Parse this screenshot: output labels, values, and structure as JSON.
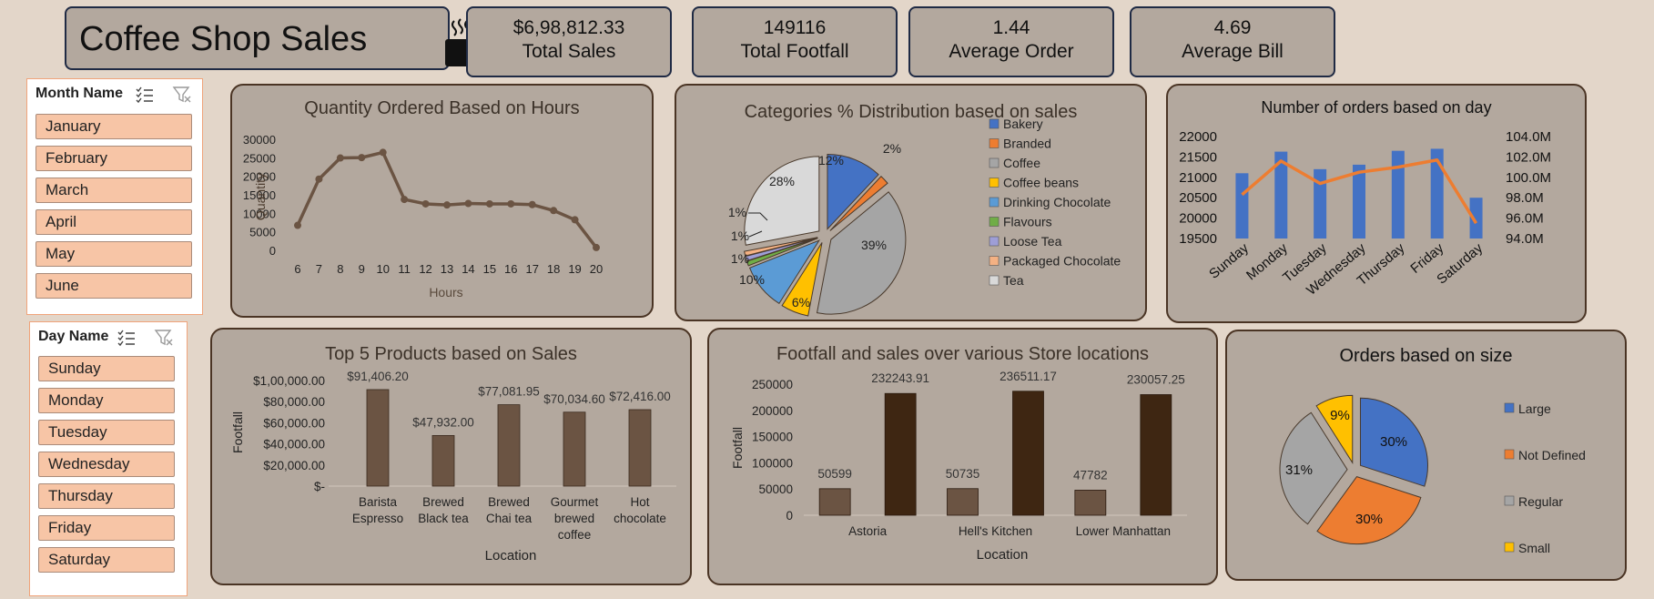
{
  "header": {
    "title": "Coffee Shop Sales",
    "icon": "coffee-cup-icon"
  },
  "kpis": [
    {
      "value": "$6,98,812.33",
      "label": "Total Sales"
    },
    {
      "value": "149116",
      "label": "Total Footfall"
    },
    {
      "value": "1.44",
      "label": "Average Order"
    },
    {
      "value": "4.69",
      "label": "Average Bill"
    }
  ],
  "slicers": {
    "month": {
      "title": "Month Name",
      "items": [
        "January",
        "February",
        "March",
        "April",
        "May",
        "June"
      ]
    },
    "day": {
      "title": "Day Name",
      "items": [
        "Sunday",
        "Monday",
        "Tuesday",
        "Wednesday",
        "Thursday",
        "Friday",
        "Saturday"
      ]
    }
  },
  "colors": {
    "brown_line": "#6b5443",
    "brown_bar": "#6b5443",
    "dark_bar": "#3e2612",
    "blue": "#4472c4",
    "orange": "#ed7d31",
    "gray": "#a5a5a5",
    "yellow": "#ffc000"
  },
  "chart_data": [
    {
      "id": "hours",
      "type": "line",
      "title": "Quantity Ordered Based on Hours",
      "xlabel": "Hours",
      "ylabel": "Quantity",
      "x": [
        "6",
        "7",
        "8",
        "9",
        "10",
        "11",
        "12",
        "13",
        "14",
        "15",
        "16",
        "17",
        "18",
        "19",
        "20"
      ],
      "values": [
        7000,
        19500,
        25200,
        25300,
        26700,
        14000,
        12800,
        12500,
        12900,
        12800,
        12800,
        12600,
        11000,
        8500,
        1000
      ],
      "yticks": [
        "30000",
        "25000",
        "20000",
        "15000",
        "10000",
        "5000",
        "0"
      ],
      "ylim": [
        0,
        30000
      ]
    },
    {
      "id": "categories",
      "type": "pie",
      "title": "Categories % Distribution based on sales",
      "legend": [
        "Bakery",
        "Branded",
        "Coffee",
        "Coffee beans",
        "Drinking Chocolate",
        "Flavours",
        "Loose Tea",
        "Packaged Chocolate",
        "Tea"
      ],
      "values": [
        12,
        2,
        39,
        6,
        10,
        1,
        1,
        1,
        28
      ],
      "labels": [
        "12%",
        "2%",
        "39%",
        "6%",
        "10%",
        "1%",
        "1%",
        "1%",
        "28%"
      ],
      "colors": [
        "#4472c4",
        "#ed7d31",
        "#a5a5a5",
        "#ffc000",
        "#5b9bd5",
        "#70ad47",
        "#9e9ed6",
        "#f4b183",
        "#d9d9d9"
      ],
      "legend_position": "right"
    },
    {
      "id": "days",
      "type": "bar",
      "title": "Number of orders based on day",
      "categories": [
        "Sunday",
        "Monday",
        "Tuesday",
        "Wednesday",
        "Thursday",
        "Friday",
        "Saturday"
      ],
      "values": [
        21100,
        21630,
        21200,
        21310,
        21650,
        21700,
        20500
      ],
      "line_values": [
        98.3,
        101.6,
        99.4,
        100.5,
        101.0,
        101.7,
        95.5
      ],
      "yticks_left": [
        "22000",
        "21500",
        "21000",
        "20500",
        "20000",
        "19500"
      ],
      "yticks_right": [
        "104.0M",
        "102.0M",
        "100.0M",
        "98.0M",
        "96.0M",
        "94.0M"
      ],
      "ylim": [
        19500,
        22000
      ],
      "ylim_right": [
        94,
        104
      ]
    },
    {
      "id": "products",
      "type": "bar",
      "title": "Top 5 Products based on Sales",
      "xlabel": "Location",
      "ylabel": "Footfall",
      "categories": [
        [
          "Barista",
          "Espresso"
        ],
        [
          "Brewed",
          "Black tea"
        ],
        [
          "Brewed",
          "Chai tea"
        ],
        [
          "Gourmet",
          "brewed",
          "coffee"
        ],
        [
          "Hot",
          "chocolate"
        ]
      ],
      "values": [
        91406.2,
        47932.0,
        77081.95,
        70034.6,
        72416.0
      ],
      "value_labels": [
        "$91,406.20",
        "$47,932.00",
        "$77,081.95",
        "$70,034.60",
        "$72,416.00"
      ],
      "yticks": [
        "$1,00,000.00",
        "$80,000.00",
        "$60,000.00",
        "$40,000.00",
        "$20,000.00",
        "$-"
      ],
      "ylim": [
        0,
        100000
      ]
    },
    {
      "id": "locations",
      "type": "bar",
      "title": "Footfall and sales over various Store locations",
      "xlabel": "Location",
      "ylabel": "Footfall",
      "categories": [
        "Astoria",
        "Hell's Kitchen",
        "Lower Manhattan"
      ],
      "series": [
        {
          "values": [
            50599,
            50735,
            47782
          ],
          "labels": [
            "50599",
            "50735",
            "47782"
          ]
        },
        {
          "values": [
            232243.91,
            236511.17,
            230057.25
          ],
          "labels": [
            "232243.91",
            "236511.17",
            "230057.25"
          ]
        }
      ],
      "yticks": [
        "250000",
        "200000",
        "150000",
        "100000",
        "50000",
        "0"
      ],
      "ylim": [
        0,
        250000
      ]
    },
    {
      "id": "sizes",
      "type": "pie",
      "title": "Orders based on size",
      "legend": [
        "Large",
        "Not Defined",
        "Regular",
        "Small"
      ],
      "values": [
        30,
        30,
        31,
        9
      ],
      "labels": [
        "30%",
        "30%",
        "31%",
        "9%"
      ],
      "colors": [
        "#4472c4",
        "#ed7d31",
        "#a5a5a5",
        "#ffc000"
      ],
      "legend_position": "right"
    }
  ]
}
